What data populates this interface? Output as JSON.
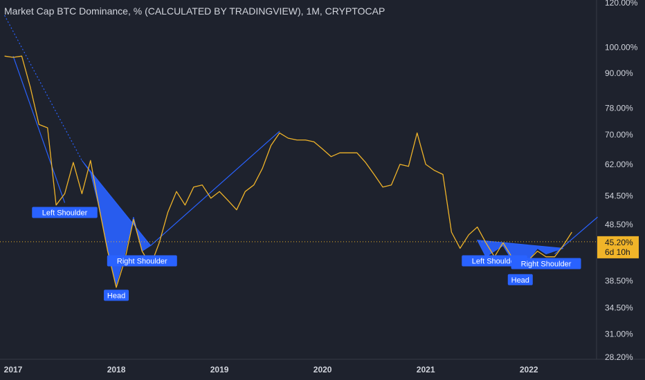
{
  "colors": {
    "background": "#1e222d",
    "axis_panel": "#1e222d",
    "grid": "#262b38",
    "price_line": "#f0b429",
    "pattern_fill": "#2962ff",
    "trend_line": "#2962ff",
    "current_label_bg": "#f0b429",
    "current_label_text": "#131722",
    "text": "#d1d4dc",
    "pattern_label_bg": "#2962ff",
    "pattern_label_text": "#ffffff"
  },
  "chart_data": {
    "type": "line",
    "title": "Market Cap BTC Dominance, % (CALCULATED BY TRADINGVIEW), 1M, CRYPTOCAP",
    "y_scale": "log",
    "ylim": [
      27.5,
      122
    ],
    "xlim": [
      "2016-12",
      "2022-10"
    ],
    "y_ticks": [
      {
        "value": 120,
        "label": "120.00%"
      },
      {
        "value": 100,
        "label": "100.00%"
      },
      {
        "value": 90,
        "label": "90.00%"
      },
      {
        "value": 78,
        "label": "78.00%"
      },
      {
        "value": 70,
        "label": "70.00%"
      },
      {
        "value": 62,
        "label": "62.00%"
      },
      {
        "value": 54.5,
        "label": "54.50%"
      },
      {
        "value": 48.5,
        "label": "48.50%"
      },
      {
        "value": 38.5,
        "label": "38.50%"
      },
      {
        "value": 34.5,
        "label": "34.50%"
      },
      {
        "value": 31,
        "label": "31.00%"
      },
      {
        "value": 28.2,
        "label": "28.20%"
      }
    ],
    "x_ticks": [
      {
        "value": "2017-01",
        "label": "2017"
      },
      {
        "value": "2018-01",
        "label": "2018"
      },
      {
        "value": "2019-01",
        "label": "2019"
      },
      {
        "value": "2020-01",
        "label": "2020"
      },
      {
        "value": "2021-01",
        "label": "2021"
      },
      {
        "value": "2022-01",
        "label": "2022"
      }
    ],
    "grid": false,
    "current_value": {
      "value": 45.2,
      "label": "45.20%",
      "countdown": "6d 10h"
    },
    "series": [
      {
        "x": [
          "2016-12",
          "2017-01",
          "2017-02",
          "2017-03",
          "2017-04",
          "2017-05",
          "2017-06",
          "2017-07",
          "2017-08",
          "2017-09",
          "2017-10",
          "2017-11",
          "2017-12",
          "2018-01",
          "2018-02",
          "2018-03",
          "2018-04",
          "2018-05",
          "2018-06",
          "2018-07",
          "2018-08",
          "2018-09",
          "2018-10",
          "2018-11",
          "2018-12",
          "2019-01",
          "2019-02",
          "2019-03",
          "2019-04",
          "2019-05",
          "2019-06",
          "2019-07",
          "2019-08",
          "2019-09",
          "2019-10",
          "2019-11",
          "2019-12",
          "2020-01",
          "2020-02",
          "2020-03",
          "2020-04",
          "2020-05",
          "2020-06",
          "2020-07",
          "2020-08",
          "2020-09",
          "2020-10",
          "2020-11",
          "2020-12",
          "2021-01",
          "2021-02",
          "2021-03",
          "2021-04",
          "2021-05",
          "2021-06",
          "2021-07",
          "2021-08",
          "2021-09",
          "2021-10",
          "2021-11",
          "2021-12",
          "2022-01",
          "2022-02",
          "2022-03",
          "2022-04",
          "2022-05",
          "2022-06"
        ],
        "values": [
          96.5,
          96.0,
          96.5,
          85.0,
          73.0,
          72.0,
          52.5,
          55.0,
          62.5,
          55.0,
          63.0,
          52.0,
          43.5,
          37.5,
          42.0,
          49.5,
          43.5,
          41.0,
          45.0,
          51.0,
          55.5,
          52.5,
          56.5,
          57.0,
          54.0,
          55.5,
          53.5,
          51.5,
          55.5,
          57.0,
          61.0,
          67.0,
          70.5,
          69.0,
          68.5,
          68.5,
          68.0,
          66.0,
          64.0,
          65.0,
          65.0,
          65.0,
          62.5,
          59.5,
          56.5,
          57.0,
          62.0,
          61.5,
          70.5,
          62.0,
          60.5,
          59.5,
          47.0,
          44.0,
          46.5,
          48.0,
          45.0,
          42.5,
          45.0,
          42.5,
          40.5,
          42.0,
          43.5,
          42.5,
          42.5,
          44.5,
          47.0
        ]
      }
    ],
    "annotations": [
      {
        "type": "trend_line",
        "style": "dotted",
        "from": [
          "2016-12",
          114
        ],
        "to": [
          "2017-09",
          63
        ]
      },
      {
        "type": "trend_line",
        "style": "solid",
        "from": [
          "2017-01",
          96.5
        ],
        "to": [
          "2017-07",
          53
        ]
      },
      {
        "type": "trend_line",
        "style": "solid",
        "from": [
          "2018-05",
          44.5
        ],
        "to": [
          "2019-08",
          71
        ]
      },
      {
        "type": "trend_line",
        "style": "solid",
        "from": [
          "2022-04",
          43
        ],
        "to": [
          "2022-09",
          50
        ]
      },
      {
        "type": "pattern_fill",
        "name": "head-and-shoulders-2018",
        "points": [
          [
            "2017-09",
            63
          ],
          [
            "2017-10",
            60
          ],
          [
            "2017-11",
            52
          ],
          [
            "2017-12",
            44
          ],
          [
            "2018-01",
            38
          ],
          [
            "2018-02",
            43
          ],
          [
            "2018-03",
            50
          ],
          [
            "2018-04",
            43.5
          ],
          [
            "2018-05",
            44.5
          ]
        ]
      },
      {
        "type": "pattern_fill",
        "name": "head-and-shoulders-2021",
        "points": [
          [
            "2021-07",
            45.5
          ],
          [
            "2021-08",
            42.5
          ],
          [
            "2021-09",
            43.5
          ],
          [
            "2021-10",
            44.5
          ],
          [
            "2021-11",
            42
          ],
          [
            "2021-12",
            40.5
          ],
          [
            "2022-01",
            42
          ],
          [
            "2022-02",
            44
          ],
          [
            "2022-03",
            43
          ],
          [
            "2022-04",
            43.5
          ],
          [
            "2022-05",
            44
          ]
        ]
      },
      {
        "type": "label",
        "text": "Left Shoulder",
        "at": [
          "2017-07",
          53
        ]
      },
      {
        "type": "label",
        "text": "Head",
        "at": [
          "2018-01",
          38
        ]
      },
      {
        "type": "label",
        "text": "Right Shoulder",
        "at": [
          "2018-04",
          43.5
        ]
      },
      {
        "type": "label",
        "text": "Left Shoulder",
        "at": [
          "2021-09",
          43.5
        ]
      },
      {
        "type": "label",
        "text": "Head",
        "at": [
          "2021-12",
          40.5
        ]
      },
      {
        "type": "label",
        "text": "Right Shoulder",
        "at": [
          "2022-03",
          43
        ]
      }
    ]
  }
}
